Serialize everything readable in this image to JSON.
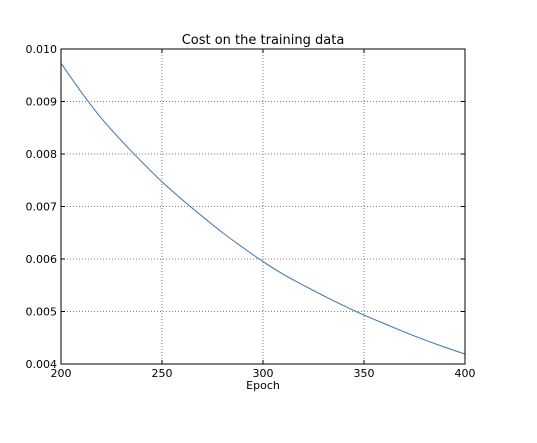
{
  "chart_data": {
    "type": "line",
    "title": "Cost on the training data",
    "xlabel": "Epoch",
    "ylabel": "",
    "xlim": [
      200,
      400
    ],
    "ylim": [
      0.004,
      0.01
    ],
    "xticks": [
      200,
      250,
      300,
      350,
      400
    ],
    "xtick_labels": [
      "200",
      "250",
      "300",
      "350",
      "400"
    ],
    "yticks": [
      0.004,
      0.005,
      0.006,
      0.007,
      0.008,
      0.009,
      0.01
    ],
    "ytick_labels": [
      "0.004",
      "0.005",
      "0.006",
      "0.007",
      "0.008",
      "0.009",
      "0.010"
    ],
    "grid": true,
    "series": [
      {
        "color": "#4a7fb5",
        "x": [
          200,
          210,
          220,
          230,
          240,
          250,
          260,
          270,
          280,
          290,
          300,
          310,
          320,
          330,
          340,
          350,
          360,
          370,
          380,
          390,
          400
        ],
        "y": [
          0.00973,
          0.00918,
          0.00868,
          0.00825,
          0.00785,
          0.00747,
          0.00713,
          0.00681,
          0.0065,
          0.00622,
          0.00595,
          0.00571,
          0.0055,
          0.0053,
          0.00511,
          0.00493,
          0.00477,
          0.00461,
          0.00446,
          0.00432,
          0.00419
        ]
      }
    ]
  }
}
